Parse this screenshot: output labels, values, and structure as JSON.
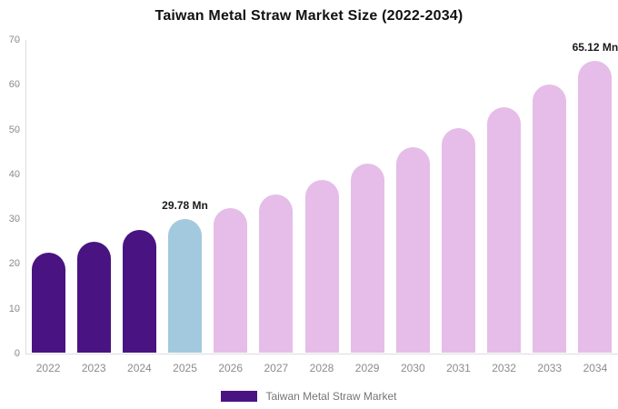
{
  "title": "Taiwan Metal Straw Market Size (2022-2034)",
  "legend": {
    "label": "Taiwan Metal Straw Market"
  },
  "colors": {
    "historical": "#4A1382",
    "base_year": "#A3C9DE",
    "forecast": "#E5BDE8",
    "axis_line": "#DDDDDD",
    "axis_text": "#8C8C8C",
    "annotation_text": "#1A1A1A",
    "title_text": "#111111",
    "legend_text": "#757575",
    "background": "#FFFFFF"
  },
  "chart_data": {
    "type": "bar",
    "title": "Taiwan Metal Straw Market Size (2022-2034)",
    "unit": "Mn",
    "categories": [
      "2022",
      "2023",
      "2024",
      "2025",
      "2026",
      "2027",
      "2028",
      "2029",
      "2030",
      "2031",
      "2032",
      "2033",
      "2034"
    ],
    "values": [
      22.4,
      24.8,
      27.3,
      29.78,
      32.3,
      35.3,
      38.6,
      42.2,
      45.9,
      50.1,
      54.7,
      59.8,
      65.12
    ],
    "color_key": [
      "historical",
      "historical",
      "historical",
      "base_year",
      "forecast",
      "forecast",
      "forecast",
      "forecast",
      "forecast",
      "forecast",
      "forecast",
      "forecast",
      "forecast"
    ],
    "annotations": [
      {
        "category": "2025",
        "text": "29.78 Mn"
      },
      {
        "category": "2034",
        "text": "65.12 Mn"
      }
    ],
    "xlabel": "",
    "ylabel": "",
    "ylim": [
      0,
      70
    ],
    "yticks": [
      0,
      10,
      20,
      30,
      40,
      50,
      60,
      70
    ],
    "grid": false,
    "legend_position": "bottom",
    "bar_shape": "rounded-top"
  }
}
